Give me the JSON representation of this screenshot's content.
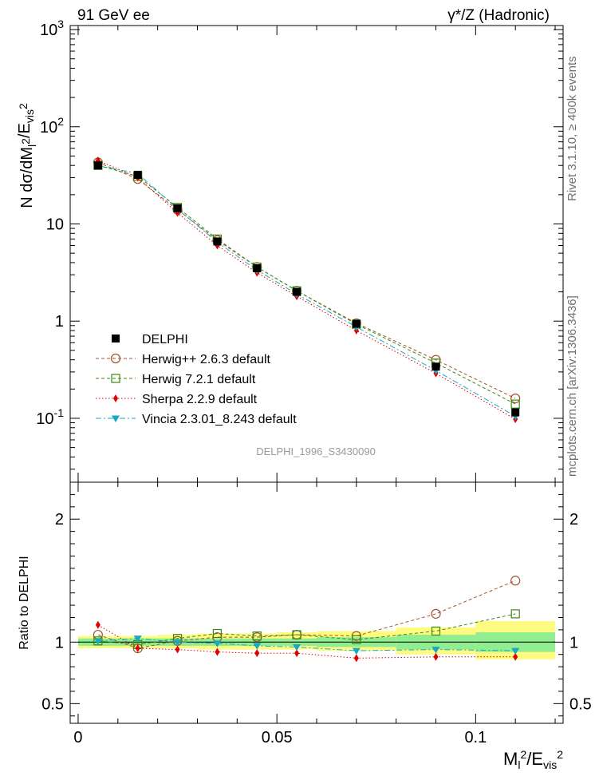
{
  "header": {
    "left": "91 GeV ee",
    "right": "γ*/Z (Hadronic)"
  },
  "side_labels": {
    "rivet": "Rivet 3.1.10, ≥ 400k events",
    "mcplots": "mcplots.cern.ch [arXiv:1306.3436]"
  },
  "analysis_id": "DELPHI_1996_S3430090",
  "colors": {
    "data": "#000000",
    "herwigpp": "#a0522d",
    "herwig7": "#3a8a12",
    "sherpa": "#e00000",
    "vincia": "#1aa7c4",
    "band_inner": "#90ee90",
    "band_outer": "#fffa80"
  },
  "chart_data": [
    {
      "type": "line",
      "panel": "main",
      "yscale": "log",
      "title": "91 GeV ee",
      "ylabel": "N dσ/dM_l^2/E_vis^2",
      "xlim": [
        -0.002,
        0.122
      ],
      "ylim": [
        0.022,
        1100
      ],
      "yticks": [
        "10^-1",
        "1",
        "10",
        "10^2",
        "10^3"
      ],
      "x": [
        0.005,
        0.015,
        0.025,
        0.035,
        0.045,
        0.055,
        0.07,
        0.09,
        0.11
      ],
      "series": [
        {
          "name": "DELPHI",
          "marker": "square-filled",
          "values": [
            40,
            32,
            14.5,
            6.6,
            3.5,
            2.0,
            0.94,
            0.34,
            0.115
          ]
        },
        {
          "name": "Herwig++ 2.6.3 default",
          "marker": "circle-open",
          "values": [
            43,
            29,
            14.0,
            6.8,
            3.6,
            2.05,
            0.95,
            0.4,
            0.16
          ]
        },
        {
          "name": "Herwig 7.2.1 default",
          "marker": "square-open",
          "values": [
            40,
            31,
            14.8,
            7.0,
            3.6,
            2.05,
            0.93,
            0.37,
            0.14
          ]
        },
        {
          "name": "Sherpa 2.2.9 default",
          "marker": "diamond-filled",
          "values": [
            45,
            30,
            13.0,
            6.0,
            3.15,
            1.8,
            0.8,
            0.29,
            0.098
          ]
        },
        {
          "name": "Vincia 2.3.01_8.243 default",
          "marker": "triangle-down-filled",
          "values": [
            40,
            33,
            14.3,
            6.5,
            3.35,
            1.9,
            0.87,
            0.31,
            0.105
          ]
        }
      ]
    },
    {
      "type": "line",
      "panel": "ratio",
      "ylabel": "Ratio to DELPHI",
      "xlabel": "M_l^2/E_vis^2",
      "xlim": [
        -0.002,
        0.122
      ],
      "ylim": [
        0.34,
        2.3
      ],
      "yticks": [
        "0.5",
        "1",
        "2"
      ],
      "xticks": [
        "0",
        "0.05",
        "0.1"
      ],
      "x": [
        0.005,
        0.015,
        0.025,
        0.035,
        0.045,
        0.055,
        0.07,
        0.09,
        0.11
      ],
      "bins": [
        [
          0,
          0.01
        ],
        [
          0.01,
          0.02
        ],
        [
          0.02,
          0.03
        ],
        [
          0.03,
          0.04
        ],
        [
          0.04,
          0.05
        ],
        [
          0.05,
          0.06
        ],
        [
          0.06,
          0.08
        ],
        [
          0.08,
          0.1
        ],
        [
          0.1,
          0.12
        ]
      ],
      "band_inner": [
        [
          0.97,
          1.03
        ],
        [
          0.97,
          1.03
        ],
        [
          0.97,
          1.03
        ],
        [
          0.97,
          1.03
        ],
        [
          0.97,
          1.03
        ],
        [
          0.97,
          1.03
        ],
        [
          0.96,
          1.04
        ],
        [
          0.94,
          1.06
        ],
        [
          0.92,
          1.08
        ]
      ],
      "band_outer": [
        [
          0.95,
          1.05
        ],
        [
          0.95,
          1.05
        ],
        [
          0.95,
          1.06
        ],
        [
          0.94,
          1.07
        ],
        [
          0.94,
          1.07
        ],
        [
          0.94,
          1.08
        ],
        [
          0.93,
          1.09
        ],
        [
          0.9,
          1.12
        ],
        [
          0.86,
          1.17
        ]
      ],
      "series": [
        {
          "name": "Herwig++ 2.6.3 default",
          "marker": "circle-open",
          "values": [
            1.06,
            0.95,
            1.01,
            1.04,
            1.04,
            1.06,
            1.05,
            1.23,
            1.5
          ]
        },
        {
          "name": "Herwig 7.2.1 default",
          "marker": "square-open",
          "values": [
            1.01,
            0.98,
            1.03,
            1.07,
            1.05,
            1.06,
            1.02,
            1.09,
            1.23
          ]
        },
        {
          "name": "Sherpa 2.2.9 default",
          "marker": "diamond-filled",
          "values": [
            1.14,
            0.95,
            0.94,
            0.92,
            0.91,
            0.91,
            0.87,
            0.88,
            0.88
          ]
        },
        {
          "name": "Vincia 2.3.01_8.243 default",
          "marker": "triangle-down-filled",
          "values": [
            1.01,
            1.03,
            1.0,
            0.99,
            0.97,
            0.96,
            0.93,
            0.94,
            0.93
          ]
        }
      ]
    }
  ]
}
